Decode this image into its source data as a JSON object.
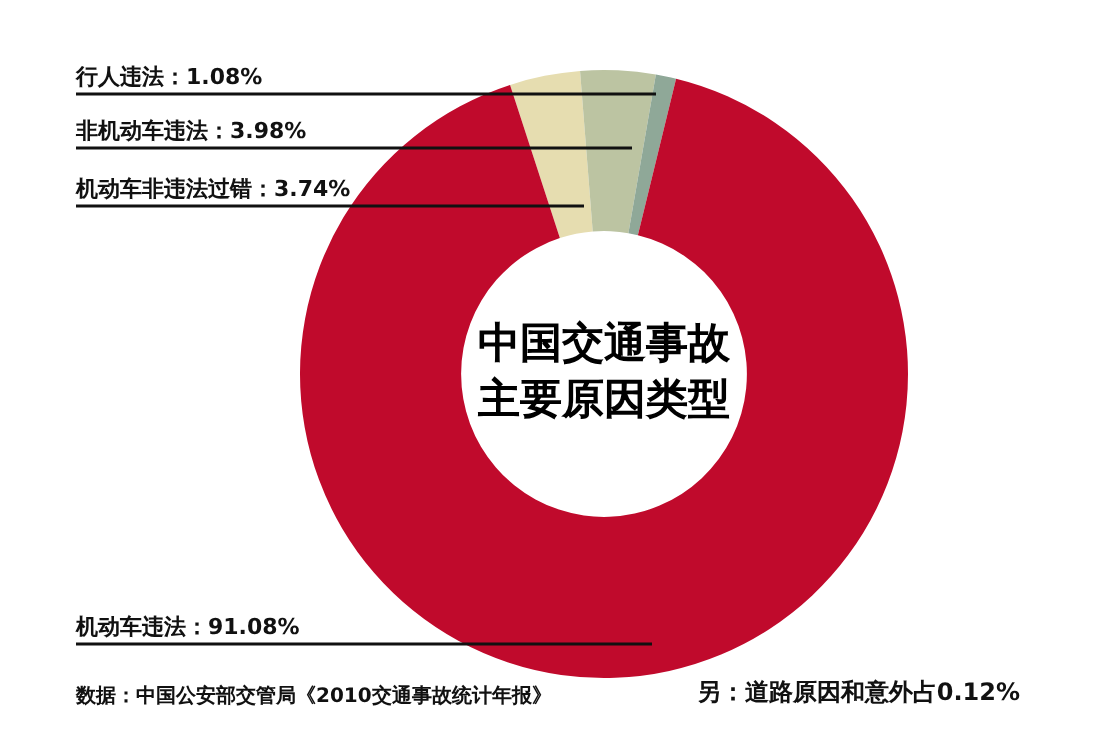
{
  "chart_data": {
    "type": "donut",
    "title": "中国交通事故主要原因类型",
    "categories": [
      "机动车非违法过错：3.74%",
      "非机动车违法：3.98%",
      "行人违法：1.08%",
      "机动车违法：91.08%"
    ],
    "values": [
      3.74,
      3.98,
      1.08,
      91.08
    ],
    "colors": [
      "#e6ddb0",
      "#bcc4a2",
      "#8fa898",
      "#c00a2c"
    ],
    "legend": false,
    "annotations": [
      "数据：中国公安部交管局《2010交通事故统计年报》",
      "另：道路原因和意外占0.12%"
    ]
  }
}
